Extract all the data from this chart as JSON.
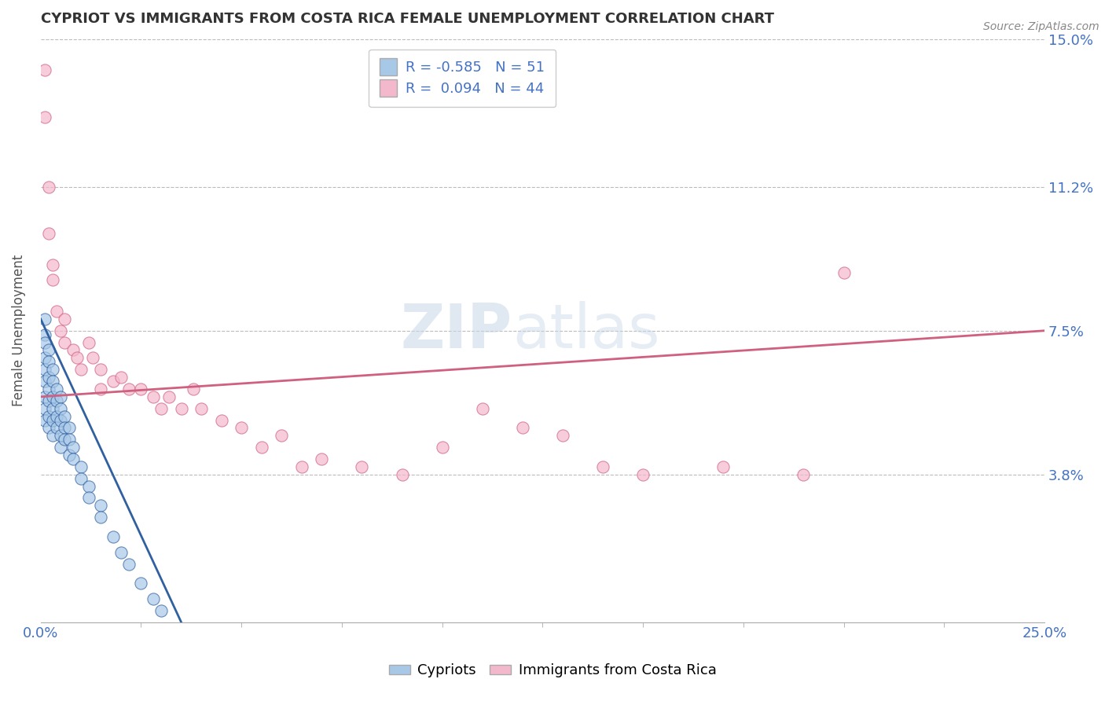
{
  "title": "CYPRIOT VS IMMIGRANTS FROM COSTA RICA FEMALE UNEMPLOYMENT CORRELATION CHART",
  "source": "Source: ZipAtlas.com",
  "ylabel": "Female Unemployment",
  "legend1_label": "Cypriots",
  "legend2_label": "Immigrants from Costa Rica",
  "r1": -0.585,
  "n1": 51,
  "r2": 0.094,
  "n2": 44,
  "xlim": [
    0.0,
    0.25
  ],
  "ylim": [
    0.0,
    0.15
  ],
  "yticks": [
    0.038,
    0.075,
    0.112,
    0.15
  ],
  "ytick_labels": [
    "3.8%",
    "7.5%",
    "11.2%",
    "15.0%"
  ],
  "xtick_left_label": "0.0%",
  "xtick_right_label": "25.0%",
  "color_blue": "#a8c8e8",
  "color_pink": "#f4b8cc",
  "line_blue": "#3060a0",
  "line_pink": "#d06080",
  "axis_color": "#4472c4",
  "watermark_zip": "ZIP",
  "watermark_atlas": "atlas",
  "blue_scatter_x": [
    0.001,
    0.001,
    0.001,
    0.001,
    0.001,
    0.001,
    0.001,
    0.001,
    0.001,
    0.002,
    0.002,
    0.002,
    0.002,
    0.002,
    0.002,
    0.002,
    0.003,
    0.003,
    0.003,
    0.003,
    0.003,
    0.003,
    0.004,
    0.004,
    0.004,
    0.004,
    0.005,
    0.005,
    0.005,
    0.005,
    0.005,
    0.006,
    0.006,
    0.006,
    0.007,
    0.007,
    0.007,
    0.008,
    0.008,
    0.01,
    0.01,
    0.012,
    0.012,
    0.015,
    0.015,
    0.018,
    0.02,
    0.022,
    0.025,
    0.028,
    0.03
  ],
  "blue_scatter_y": [
    0.078,
    0.074,
    0.072,
    0.068,
    0.065,
    0.062,
    0.058,
    0.055,
    0.052,
    0.07,
    0.067,
    0.063,
    0.06,
    0.057,
    0.053,
    0.05,
    0.065,
    0.062,
    0.058,
    0.055,
    0.052,
    0.048,
    0.06,
    0.057,
    0.053,
    0.05,
    0.058,
    0.055,
    0.052,
    0.048,
    0.045,
    0.053,
    0.05,
    0.047,
    0.05,
    0.047,
    0.043,
    0.045,
    0.042,
    0.04,
    0.037,
    0.035,
    0.032,
    0.03,
    0.027,
    0.022,
    0.018,
    0.015,
    0.01,
    0.006,
    0.003
  ],
  "pink_scatter_x": [
    0.001,
    0.001,
    0.002,
    0.002,
    0.003,
    0.003,
    0.004,
    0.005,
    0.006,
    0.006,
    0.008,
    0.009,
    0.01,
    0.012,
    0.013,
    0.015,
    0.015,
    0.018,
    0.02,
    0.022,
    0.025,
    0.028,
    0.03,
    0.032,
    0.035,
    0.038,
    0.04,
    0.045,
    0.05,
    0.055,
    0.06,
    0.065,
    0.07,
    0.08,
    0.09,
    0.1,
    0.11,
    0.12,
    0.13,
    0.14,
    0.15,
    0.17,
    0.19,
    0.2
  ],
  "pink_scatter_y": [
    0.13,
    0.142,
    0.1,
    0.112,
    0.092,
    0.088,
    0.08,
    0.075,
    0.072,
    0.078,
    0.07,
    0.068,
    0.065,
    0.072,
    0.068,
    0.065,
    0.06,
    0.062,
    0.063,
    0.06,
    0.06,
    0.058,
    0.055,
    0.058,
    0.055,
    0.06,
    0.055,
    0.052,
    0.05,
    0.045,
    0.048,
    0.04,
    0.042,
    0.04,
    0.038,
    0.045,
    0.055,
    0.05,
    0.048,
    0.04,
    0.038,
    0.04,
    0.038,
    0.09
  ],
  "blue_line_x": [
    0.0,
    0.035
  ],
  "blue_line_y_start": 0.078,
  "blue_line_y_end": 0.0,
  "pink_line_x": [
    0.0,
    0.25
  ],
  "pink_line_y_start": 0.058,
  "pink_line_y_end": 0.075
}
